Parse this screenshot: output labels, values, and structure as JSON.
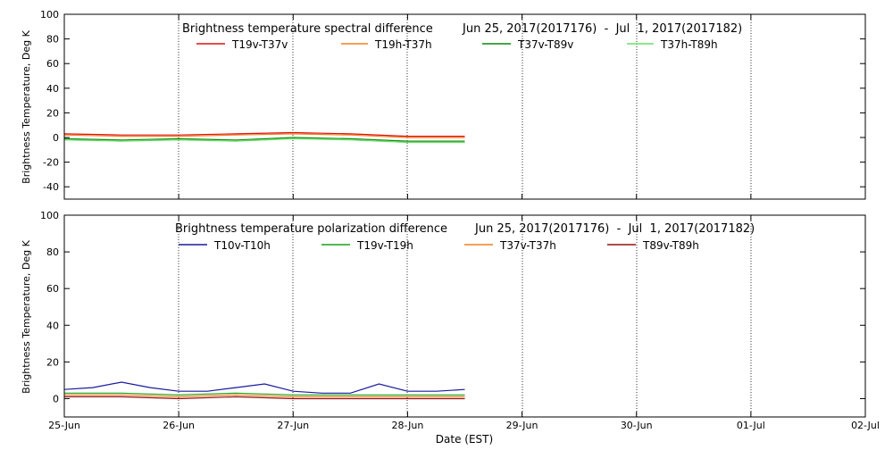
{
  "chart_data": [
    {
      "type": "line",
      "title": "Brightness temperature spectral difference",
      "date_range": "Jun 25, 2017(2017176)  -  Jul  1, 2017(2017182)",
      "ylabel": "Brightness Temperature, Deg K",
      "ylim": [
        -50,
        100
      ],
      "yticks": [
        "-40",
        "-20",
        "0",
        "20",
        "40",
        "60",
        "80",
        "100"
      ],
      "xlim": [
        "2017-06-25",
        "2017-07-02"
      ],
      "grid": "vertical dotted at day boundaries",
      "legend_position": "top",
      "series": [
        {
          "name": "T19v-T37v",
          "color": "#e01010",
          "x": [
            "2017-06-25",
            "2017-06-25T12",
            "2017-06-26",
            "2017-06-26T12",
            "2017-06-27",
            "2017-06-27T12",
            "2017-06-28",
            "2017-06-28T12"
          ],
          "values": [
            3,
            2,
            2,
            3,
            4,
            3,
            1,
            1
          ]
        },
        {
          "name": "T19h-T37h",
          "color": "#f08020",
          "x": [
            "2017-06-25",
            "2017-06-25T12",
            "2017-06-26",
            "2017-06-26T12",
            "2017-06-27",
            "2017-06-27T12",
            "2017-06-28",
            "2017-06-28T12"
          ],
          "values": [
            2,
            1,
            1,
            2,
            3,
            2,
            0,
            0
          ]
        },
        {
          "name": "T37v-T89v",
          "color": "#0a8a0a",
          "x": [
            "2017-06-25",
            "2017-06-25T12",
            "2017-06-26",
            "2017-06-26T12",
            "2017-06-27",
            "2017-06-27T12",
            "2017-06-28",
            "2017-06-28T12"
          ],
          "values": [
            -1,
            -2,
            -1,
            -2,
            0,
            -1,
            -3,
            -3
          ]
        },
        {
          "name": "T37h-T89h",
          "color": "#66e066",
          "x": [
            "2017-06-25",
            "2017-06-25T12",
            "2017-06-26",
            "2017-06-26T12",
            "2017-06-27",
            "2017-06-27T12",
            "2017-06-28",
            "2017-06-28T12"
          ],
          "values": [
            -2,
            -3,
            -2,
            -3,
            -1,
            -2,
            -4,
            -4
          ]
        }
      ]
    },
    {
      "type": "line",
      "title": "Brightness temperature polarization difference",
      "date_range": "Jun 25, 2017(2017176)  -  Jul  1, 2017(2017182)",
      "ylabel": "Brightness Temperature, Deg K",
      "xlabel": "Date (EST)",
      "ylim": [
        -10,
        100
      ],
      "yticks": [
        "0",
        "20",
        "40",
        "60",
        "80",
        "100"
      ],
      "xlim": [
        "2017-06-25",
        "2017-07-02"
      ],
      "xticks": [
        "25-Jun",
        "26-Jun",
        "27-Jun",
        "28-Jun",
        "29-Jun",
        "30-Jun",
        "01-Jul",
        "02-Jul"
      ],
      "grid": "vertical dotted at day boundaries",
      "legend_position": "top",
      "series": [
        {
          "name": "T10v-T10h",
          "color": "#1a1aa0",
          "x": [
            "2017-06-25",
            "2017-06-25T06",
            "2017-06-25T12",
            "2017-06-25T18",
            "2017-06-26",
            "2017-06-26T06",
            "2017-06-26T12",
            "2017-06-26T18",
            "2017-06-27",
            "2017-06-27T06",
            "2017-06-27T12",
            "2017-06-27T18",
            "2017-06-28",
            "2017-06-28T06",
            "2017-06-28T12"
          ],
          "values": [
            5,
            6,
            9,
            6,
            4,
            4,
            6,
            8,
            4,
            3,
            3,
            8,
            4,
            4,
            5
          ]
        },
        {
          "name": "T19v-T19h",
          "color": "#18a018",
          "x": [
            "2017-06-25",
            "2017-06-25T12",
            "2017-06-26",
            "2017-06-26T12",
            "2017-06-27",
            "2017-06-27T12",
            "2017-06-28",
            "2017-06-28T12"
          ],
          "values": [
            3,
            3,
            2,
            3,
            2,
            2,
            2,
            2
          ]
        },
        {
          "name": "T37v-T37h",
          "color": "#f08020",
          "x": [
            "2017-06-25",
            "2017-06-25T12",
            "2017-06-26",
            "2017-06-26T12",
            "2017-06-27",
            "2017-06-27T12",
            "2017-06-28",
            "2017-06-28T12"
          ],
          "values": [
            2,
            2,
            1,
            2,
            1,
            1,
            1,
            1
          ]
        },
        {
          "name": "T89v-T89h",
          "color": "#901010",
          "x": [
            "2017-06-25",
            "2017-06-25T12",
            "2017-06-26",
            "2017-06-26T12",
            "2017-06-27",
            "2017-06-27T12",
            "2017-06-28",
            "2017-06-28T12"
          ],
          "values": [
            1,
            1,
            0,
            1,
            0,
            0,
            0,
            0
          ]
        }
      ]
    }
  ]
}
